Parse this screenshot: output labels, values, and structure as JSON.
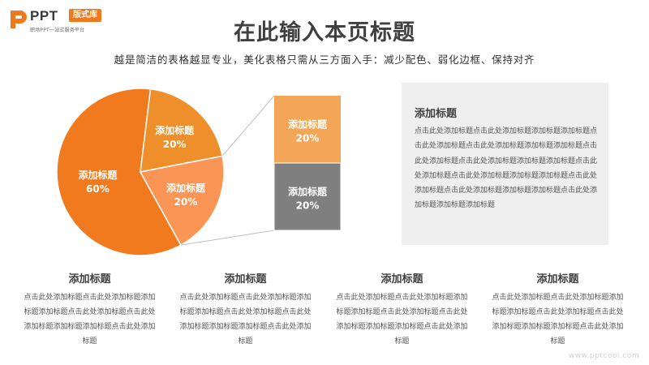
{
  "brand": {
    "name": "PPT",
    "badge": "版式库",
    "tagline": "职场PPT一站式服务平台",
    "logo_color": "#ee7a1d"
  },
  "header": {
    "title": "在此输入本页标题",
    "subtitle": "越是简洁的表格越显专业，美化表格只需从三方面入手：减少配色、弱化边框、保持对齐"
  },
  "chart_data": {
    "type": "pie",
    "slices": [
      {
        "label": "添加标题",
        "value": 60,
        "display": "60%",
        "color": "#f27a1e"
      },
      {
        "label": "添加标题",
        "value": 20,
        "display": "20%",
        "color": "#ee8f2b"
      },
      {
        "label": "添加标题",
        "value": 20,
        "display": "20%",
        "color": "#fb9555"
      }
    ],
    "breakdown": {
      "type": "stacked-bar",
      "segments": [
        {
          "label": "添加标题",
          "value": 20,
          "display": "20%",
          "color": "#f3a756"
        },
        {
          "label": "添加标题",
          "value": 20,
          "display": "20%",
          "color": "#7f7f7f"
        }
      ]
    }
  },
  "description": {
    "title": "添加标题",
    "body": "点击此处添加标题点击此处添加标题添加标题添加标题点击此处添加标题点击此处添加标题添加标题添加标题点击此处添加标题点击此处添加标题添加标题添加标题点击此处添加标题点击此处添加标题添加标题添加标题点击此处添加标题点击此处添加标题添加标题添加标题点击此处添加标题添加标题添加标题"
  },
  "columns": [
    {
      "title": "添加标题",
      "body": "点击此处添加标题点击此处添加标题添加标题添加标题点击此处添加标题点击此处添加标题添加标题添加标题点击此处添加标题"
    },
    {
      "title": "添加标题",
      "body": "点击此处添加标题点击此处添加标题添加标题添加标题点击此处添加标题点击此处添加标题添加标题添加标题点击此处添加标题"
    },
    {
      "title": "添加标题",
      "body": "点击此处添加标题点击此处添加标题添加标题添加标题点击此处添加标题点击此处添加标题添加标题添加标题点击此处添加标题"
    },
    {
      "title": "添加标题",
      "body": "点击此处添加标题点击此处添加标题添加标题添加标题点击此处添加标题点击此处添加标题添加标题添加标题点击此处添加标题"
    }
  ],
  "watermark": "www.pptcool.com"
}
